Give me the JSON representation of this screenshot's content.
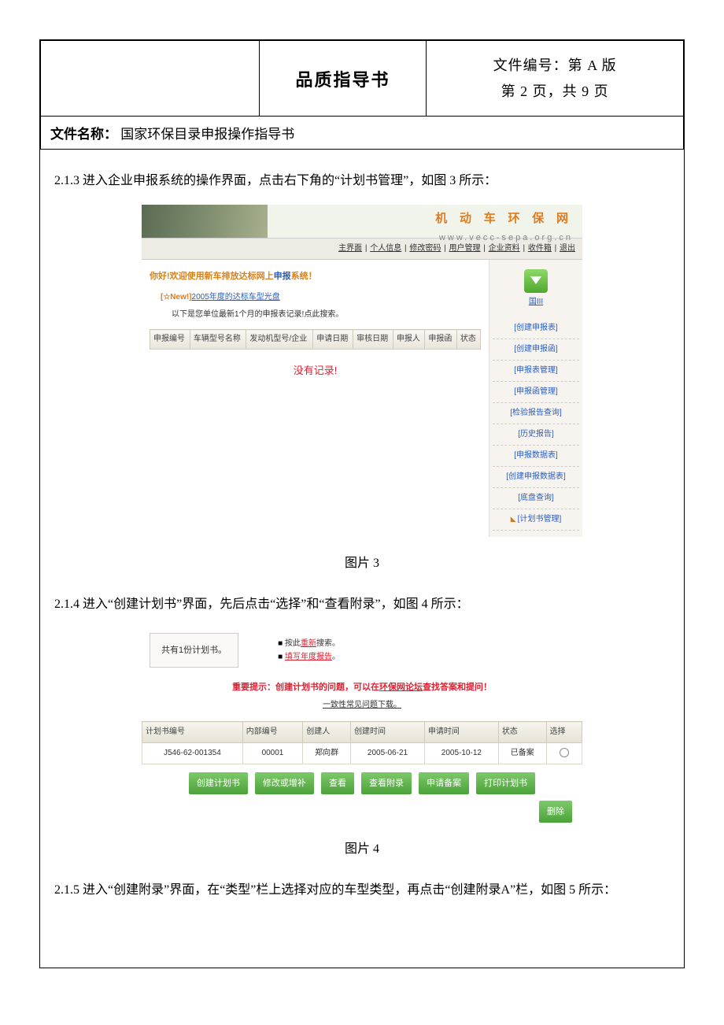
{
  "header": {
    "title": "品质指导书",
    "fileno_line": "文件编号：第 A 版",
    "page_line": "第 2 页，共 9 页"
  },
  "doc_name": {
    "label": "文件名称：",
    "value": "国家环保目录申报操作指导书"
  },
  "paragraphs": {
    "p213": "2.1.3 进入企业申报系统的操作界面，点击右下角的“计划书管理”，如图 3 所示：",
    "p214": "2.1.4 进入“创建计划书”界面，先后点击“选择”和“查看附录”，如图 4 所示：",
    "p215": "2.1.5 进入“创建附录”界面，在“类型”栏上选择对应的车型类型，再点击“创建附录A”栏，如图 5 所示："
  },
  "captions": {
    "fig3": "图片 3",
    "fig4": "图片 4"
  },
  "fig3": {
    "logo_zh": "机 动 车 环 保 网",
    "logo_en": "www.vecc-sepa.org.cn",
    "topnav": [
      "主界面",
      "个人信息",
      "修改密码",
      "用户管理",
      "企业资料",
      "收件箱",
      "退出"
    ],
    "welcome_pre": "你好!欢迎使用新车排放达标网上",
    "welcome_blue": "申报",
    "welcome_suf": "系统！",
    "new_badge": "[☆New!]",
    "new_link": "2005年度的达标车型光盘",
    "subtext": "以下是您单位最新1个月的申报表记录!点此搜索。",
    "record_cols": [
      "申报编号",
      "车辆型号名称",
      "发动机型号/企业",
      "申请日期",
      "审核日期",
      "申报人",
      "申报函",
      "状态"
    ],
    "no_records": "没有记录!",
    "side_label": "国III",
    "side_links": [
      "[创建申报表]",
      "[创建申报函]",
      "[申报表管理]",
      "[申报函管理]",
      "[检验报告查询]",
      "[历史报告]",
      "[申报数据表]",
      "[创建申报数据表]",
      "[底盘查询]",
      "[计划书管理]"
    ]
  },
  "fig4": {
    "count_text": "共有1份计划书。",
    "action1_pre": "按此",
    "action1_red": "重新",
    "action1_suf": "搜索。",
    "action2_red": "填写年度报告",
    "action2_suf": "。",
    "warn_pre": "重要提示：创建计划书的问题，可以在",
    "warn_mid": "环保网论坛",
    "warn_suf": "查找答案和提问！",
    "faq": "一致性常见问题下载。",
    "plan_cols": [
      "计划书编号",
      "内部编号",
      "创建人",
      "创建时间",
      "申请时间",
      "状态",
      "选择"
    ],
    "plan_row": {
      "id": "J546-62-001354",
      "internal": "00001",
      "creator": "郑向群",
      "ctime": "2005-06-21",
      "atime": "2005-10-12",
      "status": "已备案"
    },
    "buttons": [
      "创建计划书",
      "修改或增补",
      "查看",
      "查看附录",
      "申请备案",
      "打印计划书"
    ],
    "delete_btn": "删除"
  }
}
